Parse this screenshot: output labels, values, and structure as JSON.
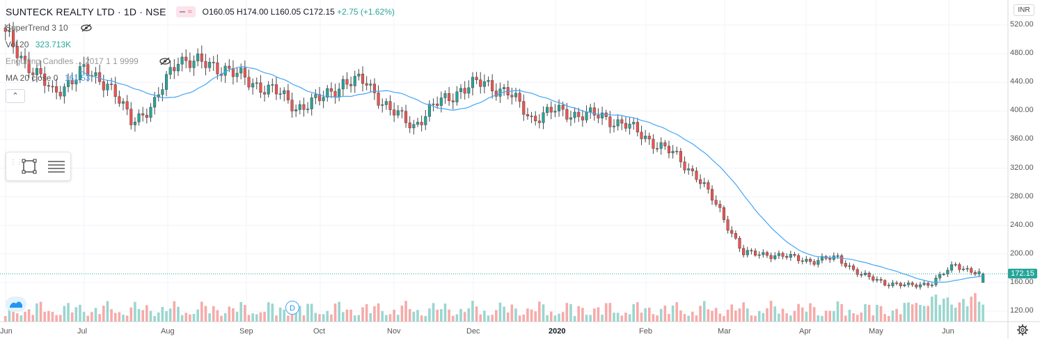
{
  "header": {
    "symbol": "SUNTECK REALTY LTD · 1D · NSE",
    "ohlc_prefix": "O160.05 H174.00 L160.05 C172.15",
    "change": "+2.75 (+1.62%)"
  },
  "indicators": {
    "supertrend": {
      "label": "SuperTrend 3 10"
    },
    "volume": {
      "label": "Vol 20",
      "value": "323.713K"
    },
    "engulfing": {
      "label": "Engulfing Candles ... 2017 1 1 9999"
    },
    "ma": {
      "label": "MA 20 close 0",
      "value": "161.53"
    }
  },
  "currency": "INR",
  "last_price": "172.15",
  "colors": {
    "up": "#26a69a",
    "down": "#ef5350",
    "ma": "#42a5f5",
    "vol_up": "#9bd6cf",
    "vol_down": "#f6aba9",
    "grid": "#f0f3fa"
  },
  "icons": [
    "eye-off-icon",
    "chevron-up-icon",
    "rectangle-tool-icon",
    "lines-tool-icon",
    "tradingview-logo-icon",
    "dividend-marker-icon",
    "settings-gear-icon"
  ],
  "dividend_marker": "D",
  "chart_data": {
    "type": "candlestick",
    "title": "SUNTECK REALTY LTD · 1D · NSE",
    "yaxis": {
      "ticks": [
        120,
        160,
        200,
        240,
        280,
        320,
        360,
        400,
        440,
        480,
        520
      ],
      "tick_labels": [
        "120.00",
        "160.00",
        "200.00",
        "240.00",
        "280.00",
        "320.00",
        "360.00",
        "400.00",
        "440.00",
        "480.00",
        "520.00"
      ],
      "range": [
        100,
        535
      ]
    },
    "xaxis": {
      "labels": [
        "Jun",
        "Jul",
        "Aug",
        "Sep",
        "Oct",
        "Nov",
        "Dec",
        "2020",
        "Feb",
        "Mar",
        "Apr",
        "May",
        "Jun"
      ]
    },
    "price_anchors": {
      "dates_index": [
        0,
        5,
        12,
        20,
        26,
        32,
        38,
        44,
        50,
        56,
        62,
        68,
        74,
        80,
        86,
        92,
        98,
        104,
        110,
        116,
        122,
        128,
        134,
        140,
        146,
        152,
        158,
        164,
        170,
        176,
        182,
        188,
        194,
        200,
        206,
        212,
        218,
        224,
        230,
        236,
        242,
        248
      ],
      "close": [
        505,
        470,
        425,
        455,
        440,
        385,
        410,
        475,
        465,
        460,
        440,
        430,
        405,
        415,
        440,
        440,
        400,
        380,
        410,
        430,
        440,
        425,
        390,
        400,
        395,
        392,
        380,
        360,
        340,
        310,
        260,
        200,
        200,
        195,
        190,
        195,
        170,
        160,
        155,
        160,
        185,
        172.15
      ]
    },
    "ma20_label": "MA 20 close 0",
    "ma20_last": 161.53,
    "last_close": 172.15,
    "last_bar": {
      "open": 160.05,
      "high": 174.0,
      "low": 160.05,
      "close": 172.15,
      "change": 2.75,
      "change_pct": 1.62
    }
  }
}
